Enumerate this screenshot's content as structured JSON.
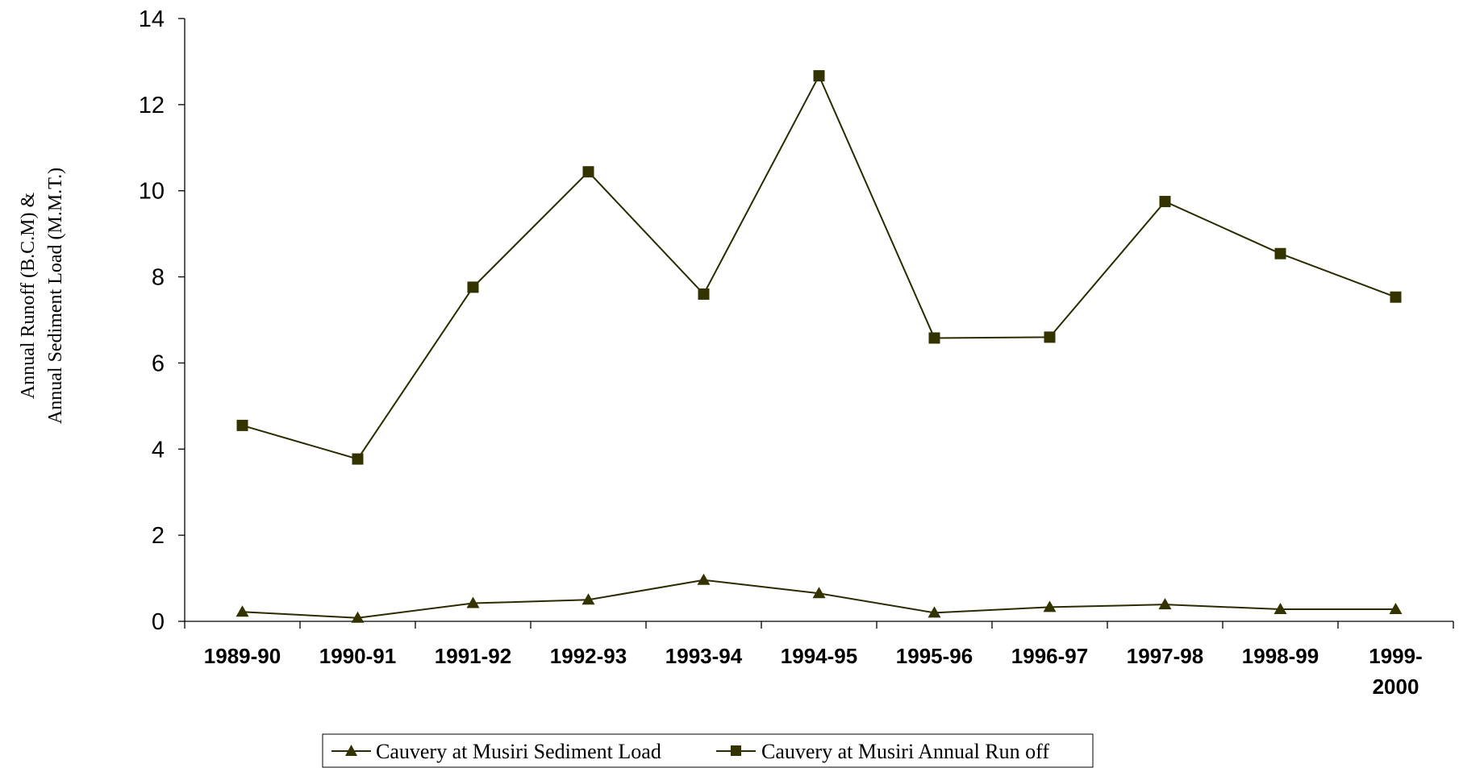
{
  "chart_data": {
    "type": "line",
    "title": "",
    "xlabel": "",
    "ylabel_lines": [
      "Annual Runoff (B.C.M) &",
      "Annual Sediment Load (M.M.T.)"
    ],
    "categories": [
      [
        "1989-90"
      ],
      [
        "1990-91"
      ],
      [
        "1991-92"
      ],
      [
        "1992-93"
      ],
      [
        "1993-94"
      ],
      [
        "1994-95"
      ],
      [
        "1995-96"
      ],
      [
        "1996-97"
      ],
      [
        "1997-98"
      ],
      [
        "1998-99"
      ],
      [
        "1999-",
        "2000"
      ]
    ],
    "ylim": [
      0,
      14
    ],
    "yticks": [
      0,
      2,
      4,
      6,
      8,
      10,
      12,
      14
    ],
    "grid": false,
    "legend_position": "bottom",
    "line_color": "#2b2b00",
    "marker_color": "#333300",
    "series": [
      {
        "name": "Cauvery at Musiri Sediment Load",
        "marker": "triangle",
        "values": [
          0.22,
          0.08,
          0.42,
          0.5,
          0.96,
          0.65,
          0.2,
          0.33,
          0.39,
          0.28,
          0.28
        ]
      },
      {
        "name": "Cauvery at Musiri Annual Run off",
        "marker": "square",
        "values": [
          4.55,
          3.77,
          7.76,
          10.44,
          7.6,
          12.67,
          6.58,
          6.6,
          9.75,
          8.54,
          7.53
        ]
      }
    ]
  }
}
